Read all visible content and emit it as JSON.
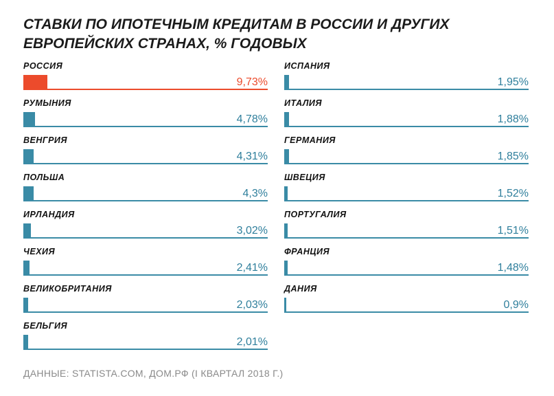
{
  "chart_data": {
    "type": "bar",
    "title": "СТАВКИ ПО ИПОТЕЧНЫМ КРЕДИТАМ В РОССИИ И ДРУГИХ ЕВРОПЕЙСКИХ СТРАНАХ, % ГОДОВЫХ",
    "left_column": [
      {
        "label": "РОССИЯ",
        "value": 9.73,
        "value_label": "9,73%",
        "highlight": true
      },
      {
        "label": "РУМЫНИЯ",
        "value": 4.78,
        "value_label": "4,78%"
      },
      {
        "label": "ВЕНГРИЯ",
        "value": 4.31,
        "value_label": "4,31%"
      },
      {
        "label": "ПОЛЬША",
        "value": 4.3,
        "value_label": "4,3%"
      },
      {
        "label": "ИРЛАНДИЯ",
        "value": 3.02,
        "value_label": "3,02%"
      },
      {
        "label": "ЧЕХИЯ",
        "value": 2.41,
        "value_label": "2,41%"
      },
      {
        "label": "ВЕЛИКОБРИТАНИЯ",
        "value": 2.03,
        "value_label": "2,03%"
      },
      {
        "label": "БЕЛЬГИЯ",
        "value": 2.01,
        "value_label": "2,01%"
      }
    ],
    "right_column": [
      {
        "label": "ИСПАНИЯ",
        "value": 1.95,
        "value_label": "1,95%"
      },
      {
        "label": "ИТАЛИЯ",
        "value": 1.88,
        "value_label": "1,88%"
      },
      {
        "label": "ГЕРМАНИЯ",
        "value": 1.85,
        "value_label": "1,85%"
      },
      {
        "label": "ШВЕЦИЯ",
        "value": 1.52,
        "value_label": "1,52%"
      },
      {
        "label": "ПОРТУГАЛИЯ",
        "value": 1.51,
        "value_label": "1,51%"
      },
      {
        "label": "ФРАНЦИЯ",
        "value": 1.48,
        "value_label": "1,48%"
      },
      {
        "label": "ДАНИЯ",
        "value": 0.9,
        "value_label": "0,9%"
      }
    ],
    "source": "ДАННЫЕ: STATISTA.COM, ДОМ.РФ (I КВАРТАЛ 2018 Г.)",
    "colors": {
      "highlight": "#ec4b2c",
      "bar": "#3a8ba6",
      "text_highlight": "#ec4b2c",
      "text": "#2f7f9c"
    }
  }
}
